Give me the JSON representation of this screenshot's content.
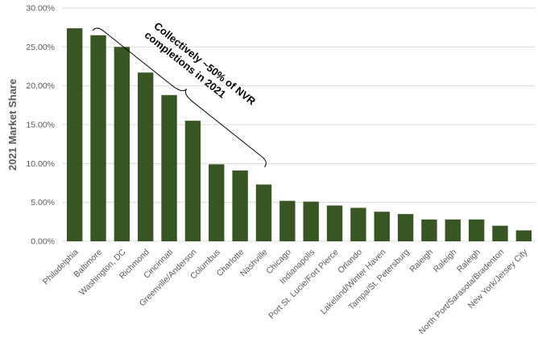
{
  "chart_data": {
    "type": "bar",
    "ylabel": "2021 Market Share",
    "xlabel": "",
    "ylim": [
      0,
      30
    ],
    "ytick_step": 5,
    "tick_format": "percent_2dp",
    "grid": true,
    "bar_color": "#375623",
    "categories": [
      "Philadelphia",
      "Baltimore",
      "Washington, DC",
      "Richmond",
      "Cincinnati",
      "Greenville/Anderson",
      "Columbus",
      "Charlotte",
      "Nashville",
      "Chicago",
      "Indianapolis",
      "Port St. Lucie/Fort Pierce",
      "Orlando",
      "Lakeland/Winter Haven",
      "Tampa/St. Petersburg",
      "Raleigh",
      "Raleigh",
      "Raleigh",
      "North Port/Sarasota/Bradenton",
      "New York/Jersey City"
    ],
    "values": [
      27.4,
      26.5,
      25.0,
      21.7,
      18.8,
      15.5,
      9.9,
      9.1,
      7.3,
      5.2,
      5.1,
      4.6,
      4.3,
      3.8,
      3.5,
      2.8,
      2.8,
      2.8,
      2.0,
      1.4
    ],
    "annotation": {
      "lines": [
        "Collectively ~50% of NVR",
        "completions in 2021"
      ],
      "bracket_from_category": 1,
      "bracket_to_category": 8
    }
  }
}
